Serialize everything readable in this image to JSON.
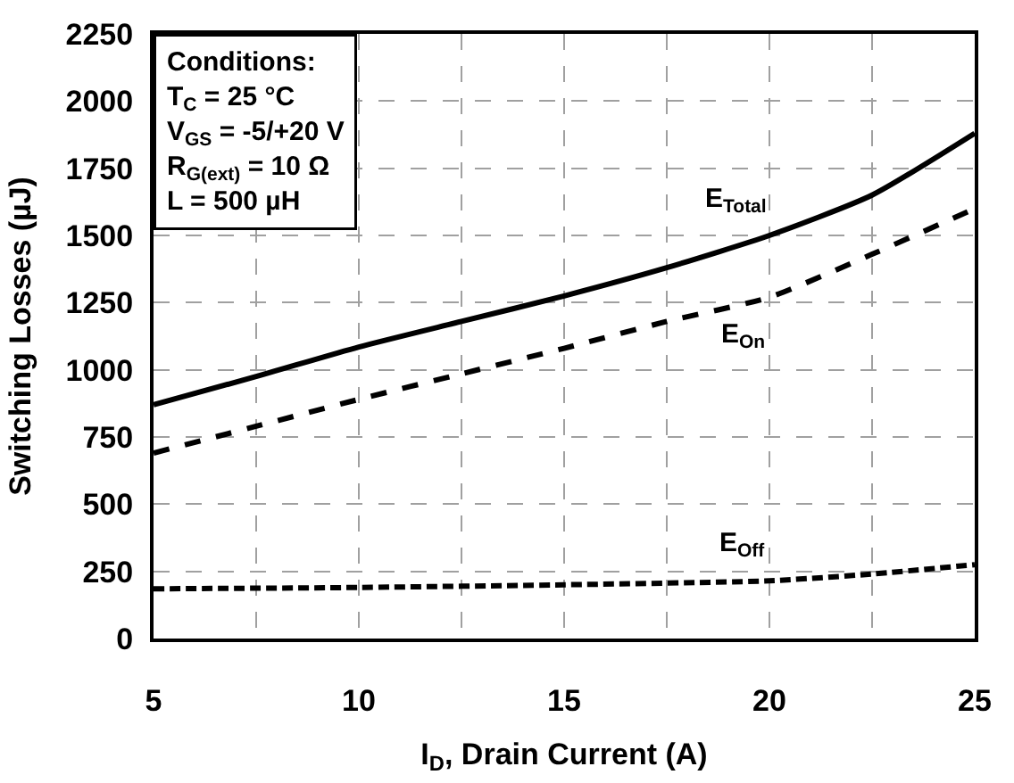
{
  "chart_data": {
    "type": "line",
    "xlabel": "I$_{D}$, Drain Current (A)",
    "ylabel": "Switching Losses (µJ)",
    "x": [
      5,
      7.5,
      10,
      12.5,
      15,
      17.5,
      20,
      22.5,
      25
    ],
    "series": [
      {
        "name": "E$_{Total}$",
        "color": "#000000",
        "line_style": "solid",
        "values": [
          870,
          975,
          1085,
          1180,
          1275,
          1380,
          1500,
          1650,
          1880
        ]
      },
      {
        "name": "E$_{On}$",
        "color": "#000000",
        "line_style": "dashed",
        "values": [
          690,
          790,
          890,
          985,
          1080,
          1180,
          1270,
          1430,
          1600
        ]
      },
      {
        "name": "E$_{Off}$",
        "color": "#000000",
        "line_style": "dotted",
        "x": [
          5,
          10,
          15,
          20,
          22.5,
          25
        ],
        "values": [
          185,
          190,
          200,
          215,
          240,
          275
        ]
      }
    ],
    "xlim": [
      5,
      25
    ],
    "ylim": [
      0,
      2250
    ],
    "xticks": [
      5,
      {
        "value": 7.5,
        "label": null
      },
      10,
      {
        "value": 12.5,
        "label": null
      },
      15,
      {
        "value": 17.5,
        "label": null
      },
      20,
      {
        "value": 22.5,
        "label": null
      },
      25
    ],
    "yticks": [
      0,
      250,
      500,
      750,
      1000,
      1250,
      1500,
      1750,
      2000,
      2250
    ],
    "grid": true,
    "legend": false,
    "marker": "none",
    "annotations": [
      "Conditions:\nT$_{C}$ = 25 °C\nV$_{GS}$ = -5/+20 V\nR$_{G(ext)}$ = 10 Ω\nL = 500 µH"
    ]
  }
}
